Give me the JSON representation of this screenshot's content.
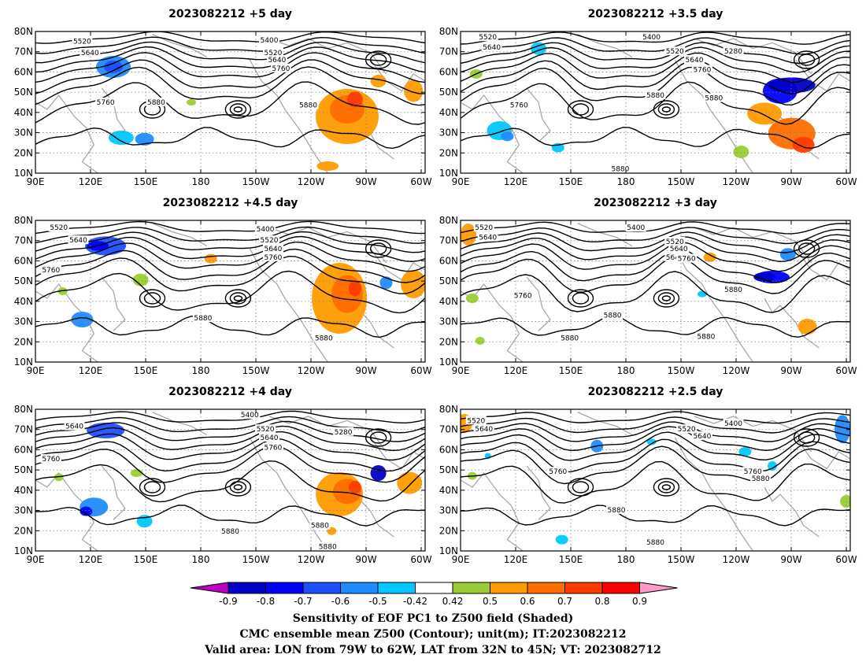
{
  "panels": [
    {
      "title": "2023082212 +5 day"
    },
    {
      "title": "2023082212 +3.5 day"
    },
    {
      "title": "2023082212 +4.5 day"
    },
    {
      "title": "2023082212 +3 day"
    },
    {
      "title": "2023082212 +4 day"
    },
    {
      "title": "2023082212 +2.5 day"
    }
  ],
  "map": {
    "lon_labels": [
      "90E",
      "120E",
      "150E",
      "180",
      "150W",
      "120W",
      "90W",
      "60W"
    ],
    "lat_labels": [
      "80N",
      "70N",
      "60N",
      "50N",
      "40N",
      "30N",
      "20N",
      "10N"
    ],
    "lon_range": [
      "90E",
      "10W"
    ],
    "lat_range": [
      10,
      80
    ]
  },
  "contour_levels": [
    "5400",
    "5520",
    "5640",
    "5760",
    "5880",
    "5280"
  ],
  "colorbar": {
    "labels": [
      "-0.9",
      "-0.8",
      "-0.7",
      "-0.6",
      "-0.5",
      "-0.42",
      "0.42",
      "0.5",
      "0.6",
      "0.7",
      "0.8",
      "0.9"
    ],
    "colors": [
      "#c000c0",
      "#0000c8",
      "#0000ff",
      "#1e50ff",
      "#1e8cff",
      "#00c8ff",
      "#ffffff",
      "#9bcd32",
      "#ff9b00",
      "#ff6e00",
      "#ff3c00",
      "#ff0000",
      "#ff9bc8"
    ]
  },
  "caption": {
    "line1": "Sensitivity of EOF PC1 to Z500 field (Shaded)",
    "line2": "CMC ensemble mean Z500 (Contour); unit(m); IT:2023082212",
    "line3": "Valid area: LON from 79W to 62W, LAT from 32N to 45N; VT: 2023082712"
  }
}
